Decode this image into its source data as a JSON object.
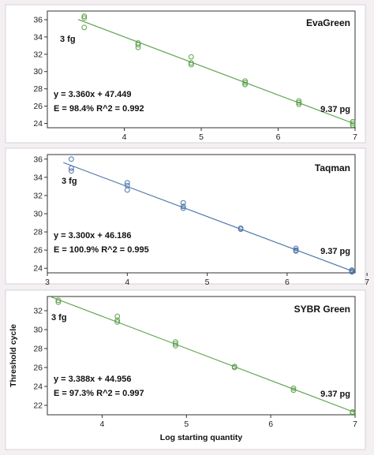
{
  "x_axis_label": "Log starting quantity",
  "y_axis_label": "Threshold cycle",
  "chart_data": [
    {
      "type": "scatter",
      "title": "EvaGreen",
      "color": "#5aa04a",
      "xlim": [
        3.0,
        7.0
      ],
      "ylim": [
        23.5,
        37.0
      ],
      "xticks": [
        4,
        5,
        6,
        7
      ],
      "yticks": [
        24,
        26,
        28,
        30,
        32,
        34,
        36
      ],
      "points": [
        [
          3.48,
          36.4
        ],
        [
          3.48,
          36.2
        ],
        [
          3.48,
          35.1
        ],
        [
          4.18,
          33.3
        ],
        [
          4.18,
          33.1
        ],
        [
          4.18,
          32.8
        ],
        [
          4.87,
          31.7
        ],
        [
          4.87,
          31.0
        ],
        [
          4.87,
          30.8
        ],
        [
          5.57,
          28.9
        ],
        [
          5.57,
          28.7
        ],
        [
          5.57,
          28.5
        ],
        [
          6.27,
          26.6
        ],
        [
          6.27,
          26.4
        ],
        [
          6.27,
          26.2
        ],
        [
          6.97,
          24.2
        ],
        [
          6.97,
          24.0
        ],
        [
          6.97,
          23.8
        ]
      ],
      "fit": {
        "slope": -3.36,
        "intercept": 47.449
      },
      "fit_range": [
        3.4,
        7.0
      ],
      "equation": "y = 3.360x + 47.449",
      "efficiency": "E = 98.4%  R^2 = 0.992",
      "low_label": "3 fg",
      "high_label": "9.37 pg"
    },
    {
      "type": "scatter",
      "title": "Taqman",
      "color": "#4b74aa",
      "xlim": [
        3.0,
        6.85
      ],
      "ylim": [
        23.5,
        36.5
      ],
      "xticks": [
        3,
        4,
        5,
        6,
        7
      ],
      "yticks": [
        24,
        26,
        28,
        30,
        32,
        34,
        36
      ],
      "points": [
        [
          3.3,
          36.0
        ],
        [
          3.3,
          35.0
        ],
        [
          3.3,
          34.7
        ],
        [
          4.0,
          33.4
        ],
        [
          4.0,
          33.1
        ],
        [
          4.0,
          32.6
        ],
        [
          4.7,
          31.2
        ],
        [
          4.7,
          30.8
        ],
        [
          4.7,
          30.6
        ],
        [
          5.42,
          28.4
        ],
        [
          5.42,
          28.3
        ],
        [
          6.11,
          26.2
        ],
        [
          6.11,
          26.0
        ],
        [
          6.11,
          25.9
        ],
        [
          6.81,
          23.8
        ],
        [
          6.81,
          23.7
        ],
        [
          6.81,
          23.6
        ]
      ],
      "fit": {
        "slope": -3.3,
        "intercept": 46.186
      },
      "fit_range": [
        3.2,
        6.83
      ],
      "equation": "y = 3.300x + 46.186",
      "efficiency": "E = 100.9%  R^2 = 0.995",
      "low_label": "3 fg",
      "high_label": "9.37 pg"
    },
    {
      "type": "scatter",
      "title": "SYBR Green",
      "color": "#5aa04a",
      "xlim": [
        3.35,
        7.0
      ],
      "ylim": [
        21.0,
        33.5
      ],
      "xticks": [
        4,
        5,
        6,
        7
      ],
      "yticks": [
        22,
        24,
        26,
        28,
        30,
        32
      ],
      "points": [
        [
          3.48,
          33.1
        ],
        [
          3.48,
          32.9
        ],
        [
          4.18,
          31.4
        ],
        [
          4.18,
          31.0
        ],
        [
          4.18,
          30.8
        ],
        [
          4.87,
          28.7
        ],
        [
          4.87,
          28.5
        ],
        [
          4.87,
          28.3
        ],
        [
          5.57,
          26.1
        ],
        [
          5.57,
          26.0
        ],
        [
          6.27,
          23.8
        ],
        [
          6.27,
          23.6
        ],
        [
          6.97,
          21.3
        ],
        [
          6.97,
          21.2
        ]
      ],
      "fit": {
        "slope": -3.388,
        "intercept": 44.956
      },
      "fit_range": [
        3.4,
        7.0
      ],
      "equation": "y = 3.388x + 44.956",
      "efficiency": "E = 97.3%  R^2 = 0.997",
      "low_label": "3 fg",
      "high_label": "9.37 pg"
    }
  ]
}
